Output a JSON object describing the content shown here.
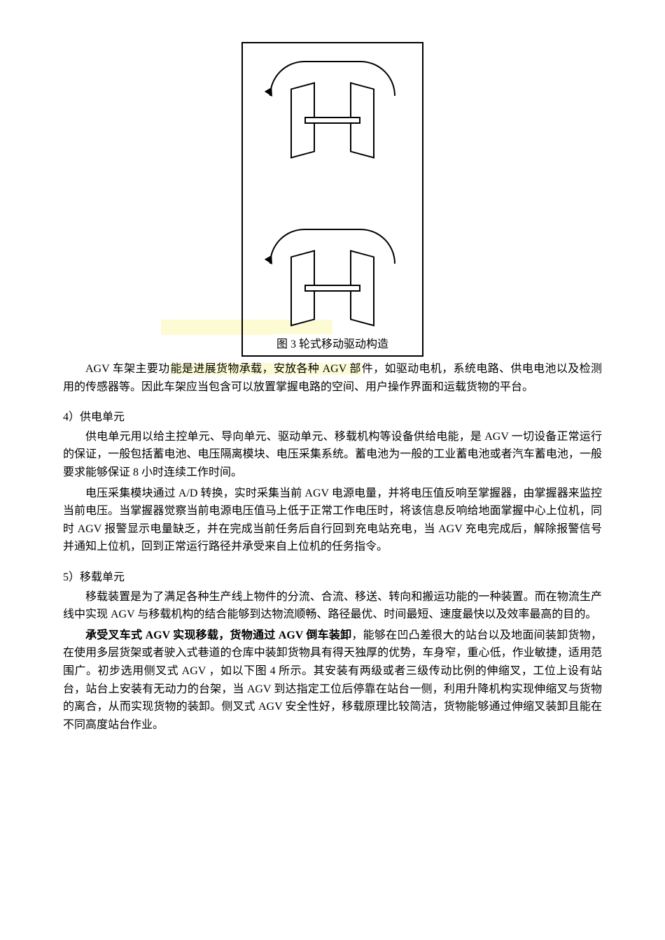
{
  "diagram": {
    "caption": "图 3 轮式移动驱动构造",
    "frame_color": "#000000",
    "background_color": "#ffffff",
    "wheel_units": 2,
    "wheel_style": "parallelogram",
    "rotation_indicator": "elliptical_arc_with_arrow"
  },
  "para1": {
    "prefix": "AGV 车架主要功",
    "highlighted": "能是进展货物承载，安放各种 AGV 部",
    "suffix": "件，如驱动电机，系统电路、供电电池以及检测用的传感器等。因此车架应当包含可以放置掌握电路的空间、用户操作界面和运载货物的平台。"
  },
  "section4": {
    "title": "4）供电单元",
    "p1": "供电单元用以给主控单元、导向单元、驱动单元、移载机构等设备供给电能，是 AGV 一切设备正常运行的保证，一般包括蓄电池、电压隔离模块、电压采集系统。蓄电池为一般的工业蓄电池或者汽车蓄电池，一般要求能够保证 8 小时连续工作时间。",
    "p2": "电压采集模块通过 A/D 转换，实时采集当前 AGV 电源电量，并将电压值反响至掌握器，由掌握器来监控当前电压。当掌握器觉察当前电源电压值马上低于正常工作电压时，将该信息反响给地面掌握中心上位机，同时 AGV 报警显示电量缺乏，并在完成当前任务后自行回到充电站充电，当 AGV 充电完成后，解除报警信号并通知上位机，回到正常运行路径并承受来自上位机的任务指令。"
  },
  "section5": {
    "title": "5）移载单元",
    "p1": "移载装置是为了满足各种生产线上物件的分流、合流、移送、转向和搬运功能的一种装置。而在物流生产线中实现 AGV 与移载机构的结合能够到达物流顺畅、路径最优、时间最短、速度最快以及效率最高的目的。",
    "p2_bold1": "承受叉车式 AGV 实现移载，货物通过 AGV 倒车装卸",
    "p2_rest": "，能够在凹凸差很大的站台以及地面间装卸货物，在使用多层货架或者驶入式巷道的仓库中装卸货物具有得天独厚的优势，车身窄，重心低，作业敏捷，适用范围广。初步选用侧叉式 AGV ，如以下图 4 所示。其安装有两级或者三级传动比例的伸缩叉，工位上设有站台，站台上安装有无动力的台架，当 AGV 到达指定工位后停靠在站台一侧，利用升降机构实现伸缩叉与货物的离合，从而实现货物的装卸。侧叉式 AGV 安全性好，移载原理比较简洁，货物能够通过伸缩叉装卸且能在不同高度站台作业。"
  },
  "colors": {
    "text": "#000000",
    "background": "#ffffff",
    "highlight": "#fdfbd4"
  },
  "typography": {
    "body_fontsize": 16,
    "line_height": 1.6,
    "font_family": "SimSun"
  }
}
